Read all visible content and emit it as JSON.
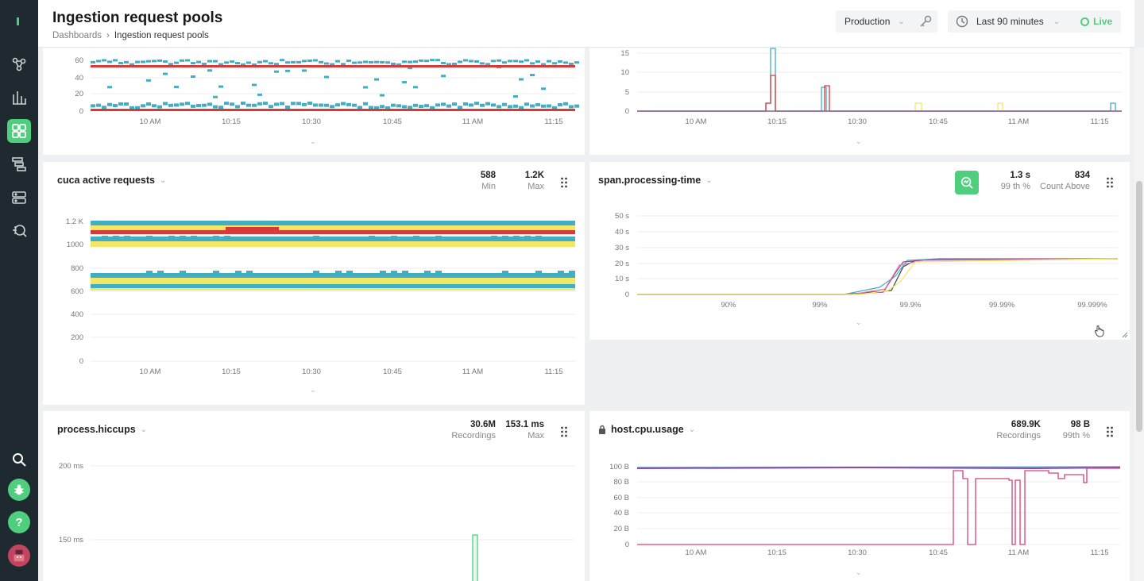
{
  "header": {
    "title": "Ingestion request pools",
    "breadcrumb": {
      "root": "Dashboards",
      "current": "Ingestion request pools"
    },
    "environment": "Production",
    "time_range": "Last 90 minutes",
    "live_label": "Live"
  },
  "sidebar": {
    "items": [
      "logo",
      "topology",
      "charts",
      "dashboards",
      "traces",
      "storage",
      "search-analytics"
    ],
    "bottom": [
      "search",
      "bug",
      "help",
      "avatar"
    ],
    "help_glyph": "?",
    "accent": "#4fcf7e"
  },
  "x_ticks": [
    "10 AM",
    "10:15",
    "10:30",
    "10:45",
    "11 AM",
    "11:15"
  ],
  "panels": {
    "top_left": {
      "y_ticks": [
        "60",
        "40",
        "20",
        "0"
      ]
    },
    "top_right": {
      "y_ticks": [
        "15",
        "10",
        "5",
        "0"
      ]
    },
    "cuca": {
      "title": "cuca active requests",
      "stats": [
        {
          "value": "588",
          "label": "Min"
        },
        {
          "value": "1.2K",
          "label": "Max"
        }
      ],
      "y_ticks": [
        "1.2 K",
        "1000",
        "800",
        "600",
        "400",
        "200",
        "0"
      ]
    },
    "span": {
      "title": "span.processing-time",
      "stats": [
        {
          "value": "1.3 s",
          "label": "99 th %"
        },
        {
          "value": "834",
          "label": "Count Above"
        }
      ],
      "y_ticks": [
        "50 s",
        "40 s",
        "30 s",
        "20 s",
        "10 s",
        "0"
      ],
      "x_ticks": [
        "90%",
        "99%",
        "99.9%",
        "99.99%",
        "99.999%"
      ]
    },
    "hiccups": {
      "title": "process.hiccups",
      "stats": [
        {
          "value": "30.6M",
          "label": "Recordings"
        },
        {
          "value": "153.1 ms",
          "label": "Max"
        }
      ],
      "y_ticks": [
        "200 ms",
        "150 ms"
      ]
    },
    "cpu": {
      "title": "host.cpu.usage",
      "stats": [
        {
          "value": "689.9K",
          "label": "Recordings"
        },
        {
          "value": "98 B",
          "label": "99th %"
        }
      ],
      "y_ticks": [
        "100 B",
        "80 B",
        "60 B",
        "40 B",
        "20 B",
        "0"
      ]
    }
  },
  "colors": {
    "teal": "#41aec3",
    "red": "#d83a3a",
    "yellow": "#f3e866",
    "purple": "#8a4ea0",
    "green": "#4fcf7e"
  }
}
